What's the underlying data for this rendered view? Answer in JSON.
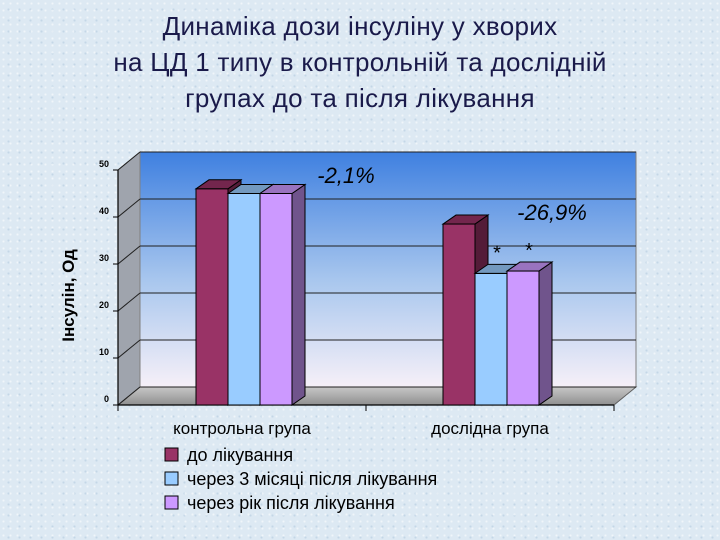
{
  "title_lines": [
    "Динаміка дози інсуліну у хворих",
    "на ЦД 1 типу в контрольній та дослідній",
    "групах до та після лікування"
  ],
  "chart_data": {
    "type": "bar",
    "title": "Динаміка дози інсуліну у хворих на ЦД 1 типу в контрольній та дослідній групах до та після лікування",
    "ylabel": "Інсулін, Од",
    "xlabel": "",
    "ylim": [
      0,
      50
    ],
    "yticks": [
      "0",
      "10",
      "20",
      "30",
      "40",
      "50"
    ],
    "grid": true,
    "legend_position": "bottom",
    "categories": [
      "контрольна група",
      "дослідна група"
    ],
    "series": [
      {
        "name": "до лікування",
        "values": [
          46,
          38.5
        ],
        "color": "#993366"
      },
      {
        "name": "через 3 місяці після лікування",
        "values": [
          45,
          28
        ],
        "color": "#99ccff"
      },
      {
        "name": "через рік після лікування",
        "values": [
          45,
          28.5
        ],
        "color": "#cc99ff"
      }
    ],
    "annotations": [
      {
        "text": "-2,1%",
        "category": 0
      },
      {
        "text": "-26,9%",
        "category": 1
      }
    ],
    "markers": [
      {
        "text": "*",
        "category": 1,
        "series": 1
      },
      {
        "text": "*",
        "category": 1,
        "series": 2
      }
    ]
  }
}
